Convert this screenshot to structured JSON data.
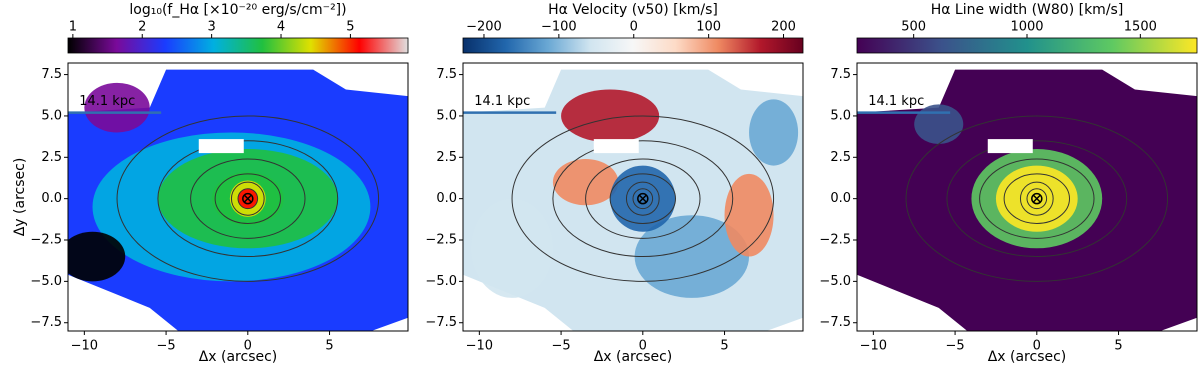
{
  "chart_data": [
    {
      "type": "heatmap",
      "title": "log₁₀(f_Hα [×10⁻²⁰ erg/s/cm⁻²])",
      "xlabel": "Δx (arcsec)",
      "ylabel": "Δy (arcsec)",
      "xlim": [
        -11,
        9.8
      ],
      "ylim": [
        -8,
        8.2
      ],
      "xticks": [
        {
          "value": -10,
          "label": "−10"
        },
        {
          "value": -5,
          "label": "−5"
        },
        0,
        5
      ],
      "yticks": [
        {
          "value": -7.5,
          "label": "−7.5"
        },
        {
          "value": -5,
          "label": "−5.0"
        },
        {
          "value": -2.5,
          "label": "−2.5"
        },
        {
          "value": 0,
          "label": "0.0"
        },
        {
          "value": 2.5,
          "label": "2.5"
        },
        {
          "value": 5,
          "label": "5.0"
        },
        {
          "value": 7.5,
          "label": "7.5"
        }
      ],
      "annotation": "14.1 kpc",
      "colorbar": {
        "clim": [
          0.93,
          5.83
        ],
        "ticks": [
          1,
          2,
          3,
          4,
          5
        ],
        "colors": [
          "#000000",
          "#7a0a9a",
          "#1a3cff",
          "#00b0e0",
          "#20c040",
          "#e0e000",
          "#ff0000",
          "#e0e0e0"
        ]
      }
    },
    {
      "type": "heatmap",
      "title": "Hα Velocity (v50) [km/s]",
      "xlabel": "Δx (arcsec)",
      "xlim": [
        -11,
        9.8
      ],
      "ylim": [
        -8,
        8.2
      ],
      "xticks": [
        {
          "value": -10,
          "label": "−10"
        },
        {
          "value": -5,
          "label": "−5"
        },
        0,
        5
      ],
      "yticks": [
        {
          "value": -7.5,
          "label": "−7.5"
        },
        {
          "value": -5,
          "label": "−5.0"
        },
        {
          "value": -2.5,
          "label": "−2.5"
        },
        {
          "value": 0,
          "label": "0.0"
        },
        {
          "value": 2.5,
          "label": "2.5"
        },
        {
          "value": 5,
          "label": "5.0"
        },
        {
          "value": 7.5,
          "label": "7.5"
        }
      ],
      "annotation": "14.1 kpc",
      "colorbar": {
        "clim": [
          -228,
          226
        ],
        "ticks": [
          {
            "value": -200,
            "label": "−200"
          },
          {
            "value": -100,
            "label": "−100"
          },
          0,
          100,
          200
        ],
        "colors": [
          "#08306b",
          "#2166ac",
          "#6aa8d4",
          "#d1e5f0",
          "#f7f7f7",
          "#fddbc7",
          "#ef8a62",
          "#b2182b",
          "#67001f"
        ]
      }
    },
    {
      "type": "heatmap",
      "title": "Hα Line width (W80) [km/s]",
      "xlabel": "Δx (arcsec)",
      "xlim": [
        -11,
        9.8
      ],
      "ylim": [
        -8,
        8.2
      ],
      "xticks": [
        {
          "value": -10,
          "label": "−10"
        },
        {
          "value": -5,
          "label": "−5"
        },
        0,
        5
      ],
      "yticks": [
        {
          "value": -7.5,
          "label": "−7.5"
        },
        {
          "value": -5,
          "label": "−5.0"
        },
        {
          "value": -2.5,
          "label": "−2.5"
        },
        {
          "value": 0,
          "label": "0.0"
        },
        {
          "value": 2.5,
          "label": "2.5"
        },
        {
          "value": 5,
          "label": "5.0"
        },
        {
          "value": 7.5,
          "label": "7.5"
        }
      ],
      "annotation": "14.1 kpc",
      "colorbar": {
        "clim": [
          250,
          1750
        ],
        "ticks": [
          500,
          1000,
          1500
        ],
        "colors": [
          "#440154",
          "#3b528b",
          "#21918c",
          "#5ec962",
          "#fde725"
        ]
      }
    }
  ]
}
